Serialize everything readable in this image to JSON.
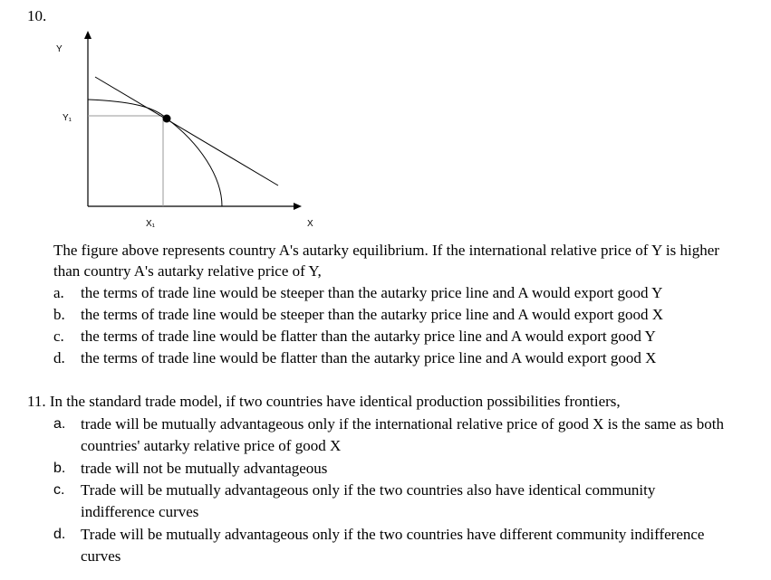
{
  "q10": {
    "number": "10.",
    "figure": {
      "y_label": "Y",
      "y1_label": "Y₁",
      "x1_label": "X₁",
      "x_label": "X"
    },
    "stem": "The figure above represents country A's autarky equilibrium. If the international relative price of Y is higher than country A's autarky relative price of Y,",
    "options": [
      {
        "letter": "a.",
        "text": "the terms of trade line would be steeper than the autarky price line and A would export good Y"
      },
      {
        "letter": "b.",
        "text": "the terms of trade line would be steeper than the autarky price line and A would export good X"
      },
      {
        "letter": "c.",
        "text": "the terms of trade line would be flatter than the autarky price line and A would export good Y"
      },
      {
        "letter": "d.",
        "text": "the terms of trade line would be flatter than the autarky price line and A would export good X"
      }
    ]
  },
  "q11": {
    "stem": "11. In the standard trade model, if two countries have identical production possibilities frontiers,",
    "options": [
      {
        "letter": "a.",
        "text": "trade will be mutually advantageous only if the international relative price of good X is the same as both countries' autarky relative price of good X"
      },
      {
        "letter": "b.",
        "text": "trade will not be mutually advantageous"
      },
      {
        "letter": "c.",
        "text": "Trade will be mutually advantageous only if the two countries also have identical community indifference curves"
      },
      {
        "letter": "d.",
        "text": "Trade will be mutually advantageous only if the two countries have different community indifference curves"
      }
    ]
  }
}
